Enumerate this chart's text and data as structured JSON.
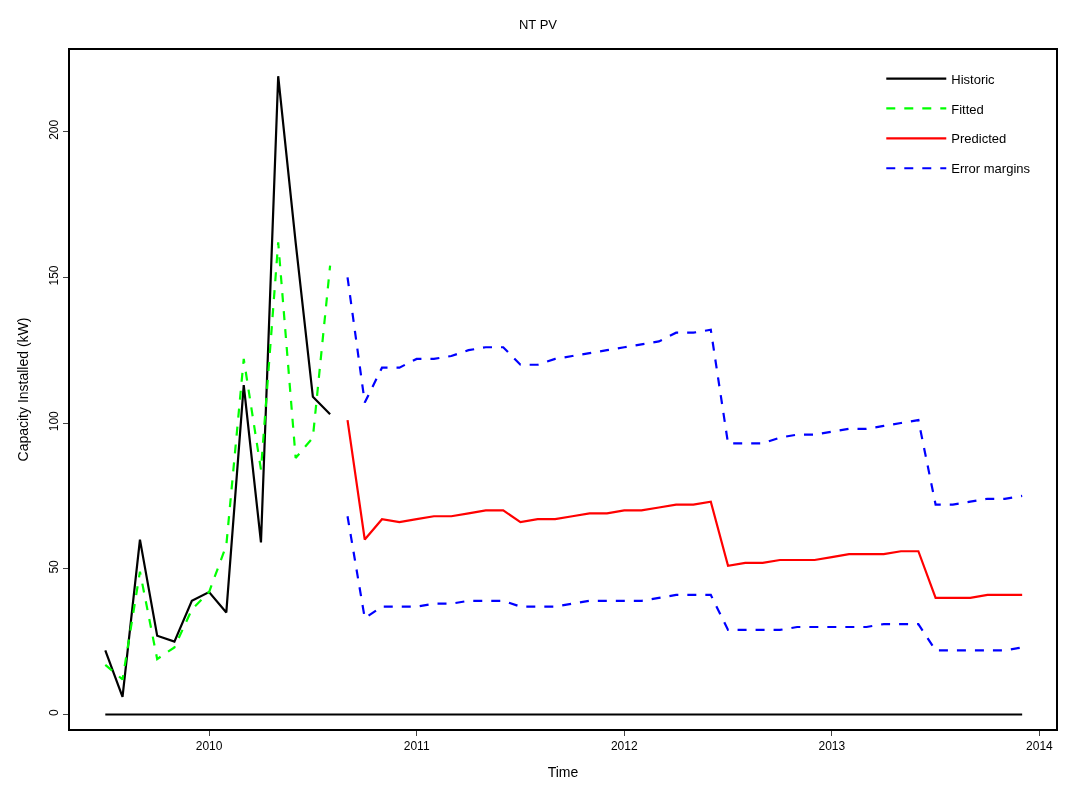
{
  "chart_data": {
    "type": "line",
    "title": "NT PV",
    "xlabel": "Time",
    "ylabel": "Capacity Installed (kW)",
    "xlim": [
      2009.33,
      2014.08
    ],
    "xticks": [
      2010,
      2011,
      2012,
      2013,
      2014
    ],
    "ylim": [
      -5,
      228
    ],
    "yticks": [
      0,
      50,
      100,
      150,
      200
    ],
    "legend": "top right",
    "marker": "none",
    "ref_lines": [
      {
        "axis": "y",
        "value": 0,
        "color": "#000000"
      }
    ],
    "series": [
      {
        "name": "Historic",
        "color": "#000000",
        "line_style": "solid",
        "x": [
          2009.5,
          2009.583,
          2009.667,
          2009.75,
          2009.833,
          2009.917,
          2010.0,
          2010.083,
          2010.167,
          2010.25,
          2010.333,
          2010.417,
          2010.5,
          2010.583
        ],
        "values": [
          22,
          6,
          60,
          27,
          25,
          39,
          42,
          35,
          113,
          59,
          219,
          162,
          109,
          103
        ]
      },
      {
        "name": "Fitted",
        "color": "#00ff00",
        "line_style": "dashed",
        "x": [
          2009.5,
          2009.583,
          2009.667,
          2009.75,
          2009.833,
          2009.917,
          2010.0,
          2010.083,
          2010.167,
          2010.25,
          2010.333,
          2010.417,
          2010.5,
          2010.583
        ],
        "values": [
          17,
          12,
          49,
          19,
          23,
          36,
          42,
          58,
          122,
          84,
          162,
          88,
          95,
          154
        ]
      },
      {
        "name": "Predicted",
        "color": "#ff0000",
        "line_style": "solid",
        "x": [
          2010.667,
          2010.75,
          2010.833,
          2010.917,
          2011.0,
          2011.083,
          2011.167,
          2011.25,
          2011.333,
          2011.417,
          2011.5,
          2011.583,
          2011.667,
          2011.75,
          2011.833,
          2011.917,
          2012.0,
          2012.083,
          2012.167,
          2012.25,
          2012.333,
          2012.417,
          2012.5,
          2012.583,
          2012.667,
          2012.75,
          2012.833,
          2012.917,
          2013.0,
          2013.083,
          2013.167,
          2013.25,
          2013.333,
          2013.417,
          2013.5,
          2013.583,
          2013.667,
          2013.75,
          2013.833,
          2013.917
        ],
        "values": [
          101,
          60,
          67,
          66,
          67,
          68,
          68,
          69,
          70,
          70,
          66,
          67,
          67,
          68,
          69,
          69,
          70,
          70,
          71,
          72,
          72,
          73,
          51,
          52,
          52,
          53,
          53,
          53,
          54,
          55,
          55,
          55,
          56,
          56,
          40,
          40,
          40,
          41,
          41,
          41
        ]
      },
      {
        "name": "Error margins",
        "color": "#0000ff",
        "line_style": "dashed",
        "x": [
          2010.667,
          2010.75,
          2010.833,
          2010.917,
          2011.0,
          2011.083,
          2011.167,
          2011.25,
          2011.333,
          2011.417,
          2011.5,
          2011.583,
          2011.667,
          2011.75,
          2011.833,
          2011.917,
          2012.0,
          2012.083,
          2012.167,
          2012.25,
          2012.333,
          2012.417,
          2012.5,
          2012.583,
          2012.667,
          2012.75,
          2012.833,
          2012.917,
          2013.0,
          2013.083,
          2013.167,
          2013.25,
          2013.333,
          2013.417,
          2013.5,
          2013.583,
          2013.667,
          2013.75,
          2013.833,
          2013.917
        ],
        "values": [
          150,
          107,
          119,
          119,
          122,
          122,
          123,
          125,
          126,
          126,
          120,
          120,
          122,
          123,
          124,
          125,
          126,
          127,
          128,
          131,
          131,
          132,
          93,
          93,
          93,
          95,
          96,
          96,
          97,
          98,
          98,
          99,
          100,
          101,
          72,
          72,
          73,
          74,
          74,
          75
        ]
      },
      {
        "color": "#0000ff",
        "line_style": "dashed",
        "x": [
          2010.667,
          2010.75,
          2010.833,
          2010.917,
          2011.0,
          2011.083,
          2011.167,
          2011.25,
          2011.333,
          2011.417,
          2011.5,
          2011.583,
          2011.667,
          2011.75,
          2011.833,
          2011.917,
          2012.0,
          2012.083,
          2012.167,
          2012.25,
          2012.333,
          2012.417,
          2012.5,
          2012.583,
          2012.667,
          2012.75,
          2012.833,
          2012.917,
          2013.0,
          2013.083,
          2013.167,
          2013.25,
          2013.333,
          2013.417,
          2013.5,
          2013.583,
          2013.667,
          2013.75,
          2013.833,
          2013.917
        ],
        "values": [
          68,
          33,
          37,
          37,
          37,
          38,
          38,
          39,
          39,
          39,
          37,
          37,
          37,
          38,
          39,
          39,
          39,
          39,
          40,
          41,
          41,
          41,
          29,
          29,
          29,
          29,
          30,
          30,
          30,
          30,
          30,
          31,
          31,
          31,
          22,
          22,
          22,
          22,
          22,
          23
        ]
      }
    ]
  }
}
